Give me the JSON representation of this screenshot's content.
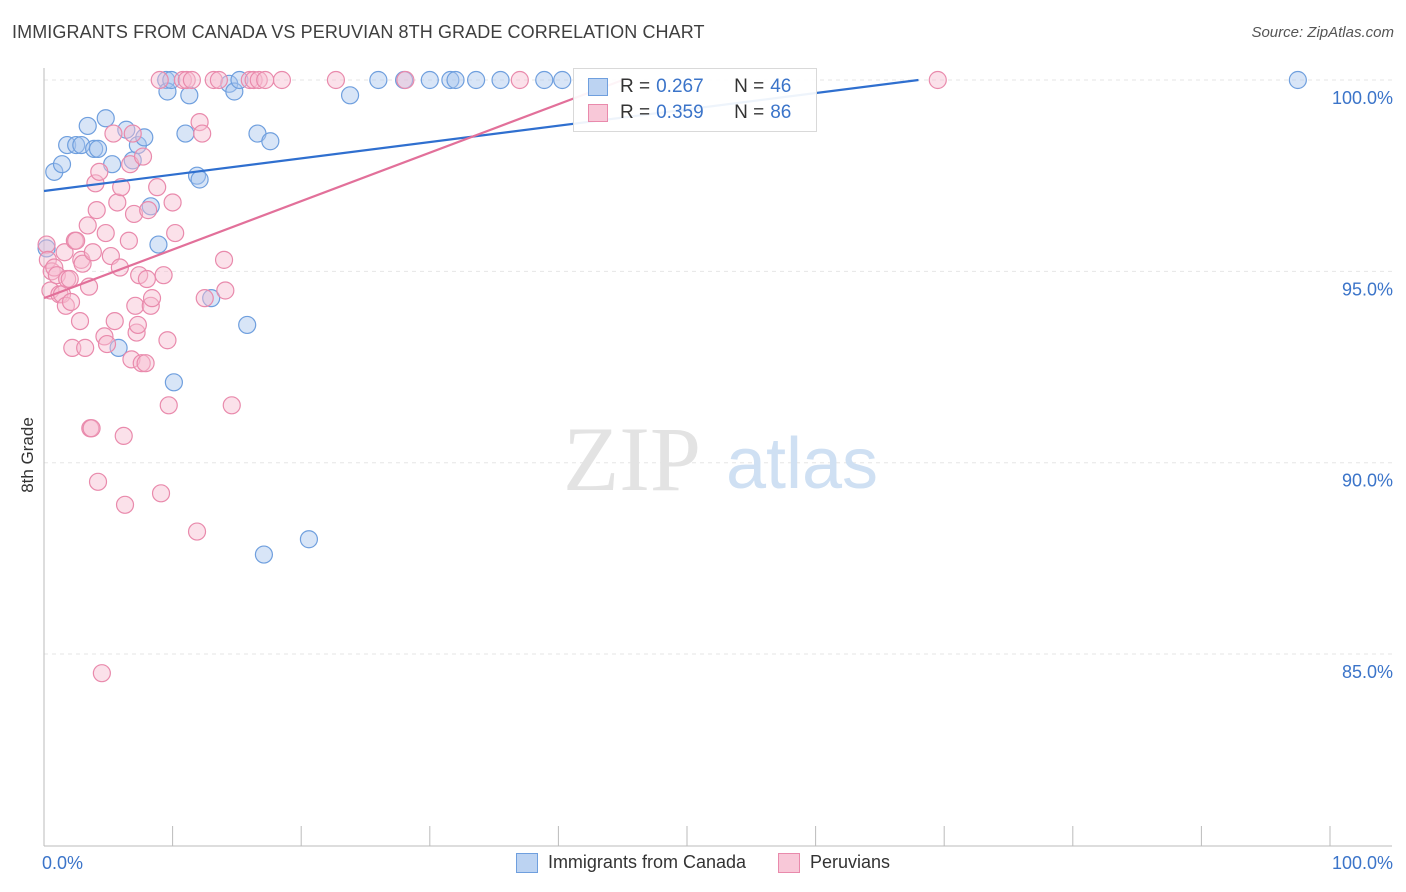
{
  "title": "IMMIGRANTS FROM CANADA VS PERUVIAN 8TH GRADE CORRELATION CHART",
  "source": "Source: ZipAtlas.com",
  "watermark": {
    "zip": "ZIP",
    "atlas": "atlas"
  },
  "colors": {
    "blue_fill": "#a9c6ee",
    "blue_stroke": "#6f9fde",
    "blue_line": "#2f6fcf",
    "pink_fill": "#f6bdd0",
    "pink_stroke": "#e98aac",
    "pink_line": "#e2709a",
    "grid": "#e6e6e6",
    "tick_label": "#3b74c9"
  },
  "legend_top": [
    {
      "r_label": "R =",
      "r_value": "0.267",
      "n_label": "N =",
      "n_value": "46"
    },
    {
      "r_label": "R =",
      "r_value": "0.359",
      "n_label": "N =",
      "n_value": "86"
    }
  ],
  "legend_bottom": [
    "Immigrants from Canada",
    "Peruvians"
  ],
  "chart_data": {
    "type": "scatter",
    "title": "IMMIGRANTS FROM CANADA VS PERUVIAN 8TH GRADE CORRELATION CHART",
    "xlabel": "",
    "ylabel": "8th Grade",
    "xlim": [
      0,
      100
    ],
    "ylim": [
      80.5,
      100.8
    ],
    "x_tick_labels": {
      "left": "0.0%",
      "right": "100.0%"
    },
    "y_ticks": [
      100,
      95,
      90,
      85
    ],
    "y_tick_labels": [
      "100.0%",
      "95.0%",
      "90.0%",
      "85.0%"
    ],
    "series": [
      {
        "name": "Immigrants from Canada",
        "color": "blue",
        "R": 0.267,
        "N": 46,
        "trend": {
          "x": [
            0,
            68
          ],
          "y": [
            97.1,
            100.0
          ]
        },
        "points": [
          [
            0.2,
            95.6
          ],
          [
            0.8,
            97.6
          ],
          [
            1.4,
            97.8
          ],
          [
            1.8,
            98.3
          ],
          [
            2.5,
            98.3
          ],
          [
            2.9,
            98.3
          ],
          [
            3.4,
            98.8
          ],
          [
            3.9,
            98.2
          ],
          [
            4.2,
            98.2
          ],
          [
            4.8,
            99.0
          ],
          [
            5.3,
            97.8
          ],
          [
            6.4,
            98.7
          ],
          [
            6.9,
            97.9
          ],
          [
            7.3,
            98.3
          ],
          [
            7.8,
            98.5
          ],
          [
            8.3,
            96.7
          ],
          [
            8.9,
            95.7
          ],
          [
            9.5,
            100.0
          ],
          [
            9.6,
            99.7
          ],
          [
            9.9,
            100.0
          ],
          [
            11.0,
            98.6
          ],
          [
            11.3,
            99.6
          ],
          [
            11.9,
            97.5
          ],
          [
            12.1,
            97.4
          ],
          [
            13.0,
            94.3
          ],
          [
            14.4,
            99.9
          ],
          [
            14.8,
            99.7
          ],
          [
            15.2,
            100.0
          ],
          [
            15.8,
            93.6
          ],
          [
            16.6,
            98.6
          ],
          [
            17.1,
            87.6
          ],
          [
            17.6,
            98.4
          ],
          [
            20.6,
            88.0
          ],
          [
            23.8,
            99.6
          ],
          [
            26.0,
            100.0
          ],
          [
            28.0,
            100.0
          ],
          [
            30.0,
            100.0
          ],
          [
            31.6,
            100.0
          ],
          [
            32.0,
            100.0
          ],
          [
            33.6,
            100.0
          ],
          [
            38.9,
            100.0
          ],
          [
            40.3,
            100.0
          ],
          [
            5.8,
            93.0
          ],
          [
            10.1,
            92.1
          ],
          [
            97.5,
            100.0
          ],
          [
            35.5,
            100.0
          ]
        ]
      },
      {
        "name": "Peruvians",
        "color": "pink",
        "R": 0.359,
        "N": 86,
        "trend": {
          "x": [
            0,
            45
          ],
          "y": [
            94.3,
            100.0
          ]
        },
        "points": [
          [
            0.2,
            95.7
          ],
          [
            0.3,
            95.3
          ],
          [
            0.5,
            94.5
          ],
          [
            0.6,
            95.0
          ],
          [
            0.8,
            95.1
          ],
          [
            1.0,
            94.9
          ],
          [
            1.2,
            94.4
          ],
          [
            1.4,
            94.4
          ],
          [
            1.6,
            95.5
          ],
          [
            1.7,
            94.1
          ],
          [
            1.8,
            94.8
          ],
          [
            2.0,
            94.8
          ],
          [
            2.1,
            94.2
          ],
          [
            2.2,
            93.0
          ],
          [
            2.4,
            95.8
          ],
          [
            2.5,
            95.8
          ],
          [
            2.8,
            93.7
          ],
          [
            2.9,
            95.3
          ],
          [
            3.0,
            95.2
          ],
          [
            3.2,
            93.0
          ],
          [
            3.4,
            96.2
          ],
          [
            3.5,
            94.6
          ],
          [
            3.6,
            90.9
          ],
          [
            3.7,
            90.9
          ],
          [
            3.8,
            95.5
          ],
          [
            4.0,
            97.3
          ],
          [
            4.1,
            96.6
          ],
          [
            4.2,
            89.5
          ],
          [
            4.3,
            97.6
          ],
          [
            4.5,
            84.5
          ],
          [
            4.7,
            93.3
          ],
          [
            4.8,
            96.0
          ],
          [
            4.9,
            93.1
          ],
          [
            5.2,
            95.4
          ],
          [
            5.4,
            98.6
          ],
          [
            5.5,
            93.7
          ],
          [
            5.7,
            96.8
          ],
          [
            5.9,
            95.1
          ],
          [
            6.0,
            97.2
          ],
          [
            6.2,
            90.7
          ],
          [
            6.3,
            88.9
          ],
          [
            6.6,
            95.8
          ],
          [
            6.7,
            97.8
          ],
          [
            6.8,
            92.7
          ],
          [
            6.9,
            98.6
          ],
          [
            7.0,
            96.5
          ],
          [
            7.1,
            94.1
          ],
          [
            7.2,
            93.4
          ],
          [
            7.3,
            93.6
          ],
          [
            7.4,
            94.9
          ],
          [
            7.6,
            92.6
          ],
          [
            7.7,
            98.0
          ],
          [
            7.9,
            92.6
          ],
          [
            8.0,
            94.8
          ],
          [
            8.1,
            96.6
          ],
          [
            8.3,
            94.1
          ],
          [
            8.4,
            94.3
          ],
          [
            8.8,
            97.2
          ],
          [
            9.1,
            89.2
          ],
          [
            9.3,
            94.9
          ],
          [
            9.6,
            93.2
          ],
          [
            9.7,
            91.5
          ],
          [
            10.0,
            96.8
          ],
          [
            10.2,
            96.0
          ],
          [
            10.8,
            100.0
          ],
          [
            11.1,
            100.0
          ],
          [
            11.5,
            100.0
          ],
          [
            11.9,
            88.2
          ],
          [
            12.1,
            98.9
          ],
          [
            12.3,
            98.6
          ],
          [
            12.5,
            94.3
          ],
          [
            13.2,
            100.0
          ],
          [
            13.6,
            100.0
          ],
          [
            14.0,
            95.3
          ],
          [
            14.1,
            94.5
          ],
          [
            14.6,
            91.5
          ],
          [
            16.0,
            100.0
          ],
          [
            16.3,
            100.0
          ],
          [
            16.7,
            100.0
          ],
          [
            9.0,
            100.0
          ],
          [
            18.5,
            100.0
          ],
          [
            22.7,
            100.0
          ],
          [
            28.1,
            100.0
          ],
          [
            17.2,
            100.0
          ],
          [
            69.5,
            100.0
          ],
          [
            37.0,
            100.0
          ]
        ]
      }
    ]
  }
}
